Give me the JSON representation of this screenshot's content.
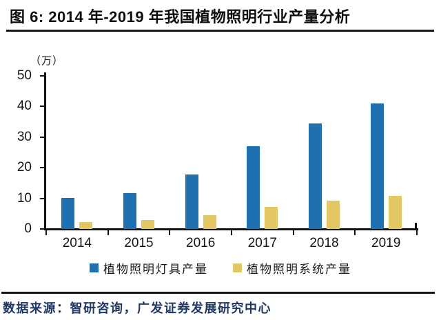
{
  "figure": {
    "title": "图 6:  2014 年-2019 年我国植物照明行业产量分析",
    "source": "数据来源：智研咨询，广发证券发展研究中心"
  },
  "chart_data": {
    "type": "bar",
    "title": "2014年-2019年我国植物照明行业产量分析",
    "unit_label": "（万）",
    "xlabel": "",
    "ylabel": "（万）",
    "categories": [
      "2014",
      "2015",
      "2016",
      "2017",
      "2018",
      "2019"
    ],
    "series": [
      {
        "name": "植物照明灯具产量",
        "color": "#1F70B0",
        "values": [
          10.2,
          11.7,
          17.8,
          27.1,
          34.5,
          41.0
        ]
      },
      {
        "name": "植物照明系统产量",
        "color": "#E4C765",
        "values": [
          2.3,
          3.0,
          4.5,
          7.3,
          9.2,
          10.8
        ]
      }
    ],
    "ylim": [
      0,
      50
    ],
    "yticks": [
      0,
      10,
      20,
      30,
      40,
      50
    ],
    "grid": false,
    "legend_position": "bottom"
  },
  "colors": {
    "bar_blue": "#1F70B0",
    "bar_gold": "#E4C765",
    "axis": "#111111",
    "title_text": "#0d0d0d",
    "source_text": "#1f3864"
  }
}
